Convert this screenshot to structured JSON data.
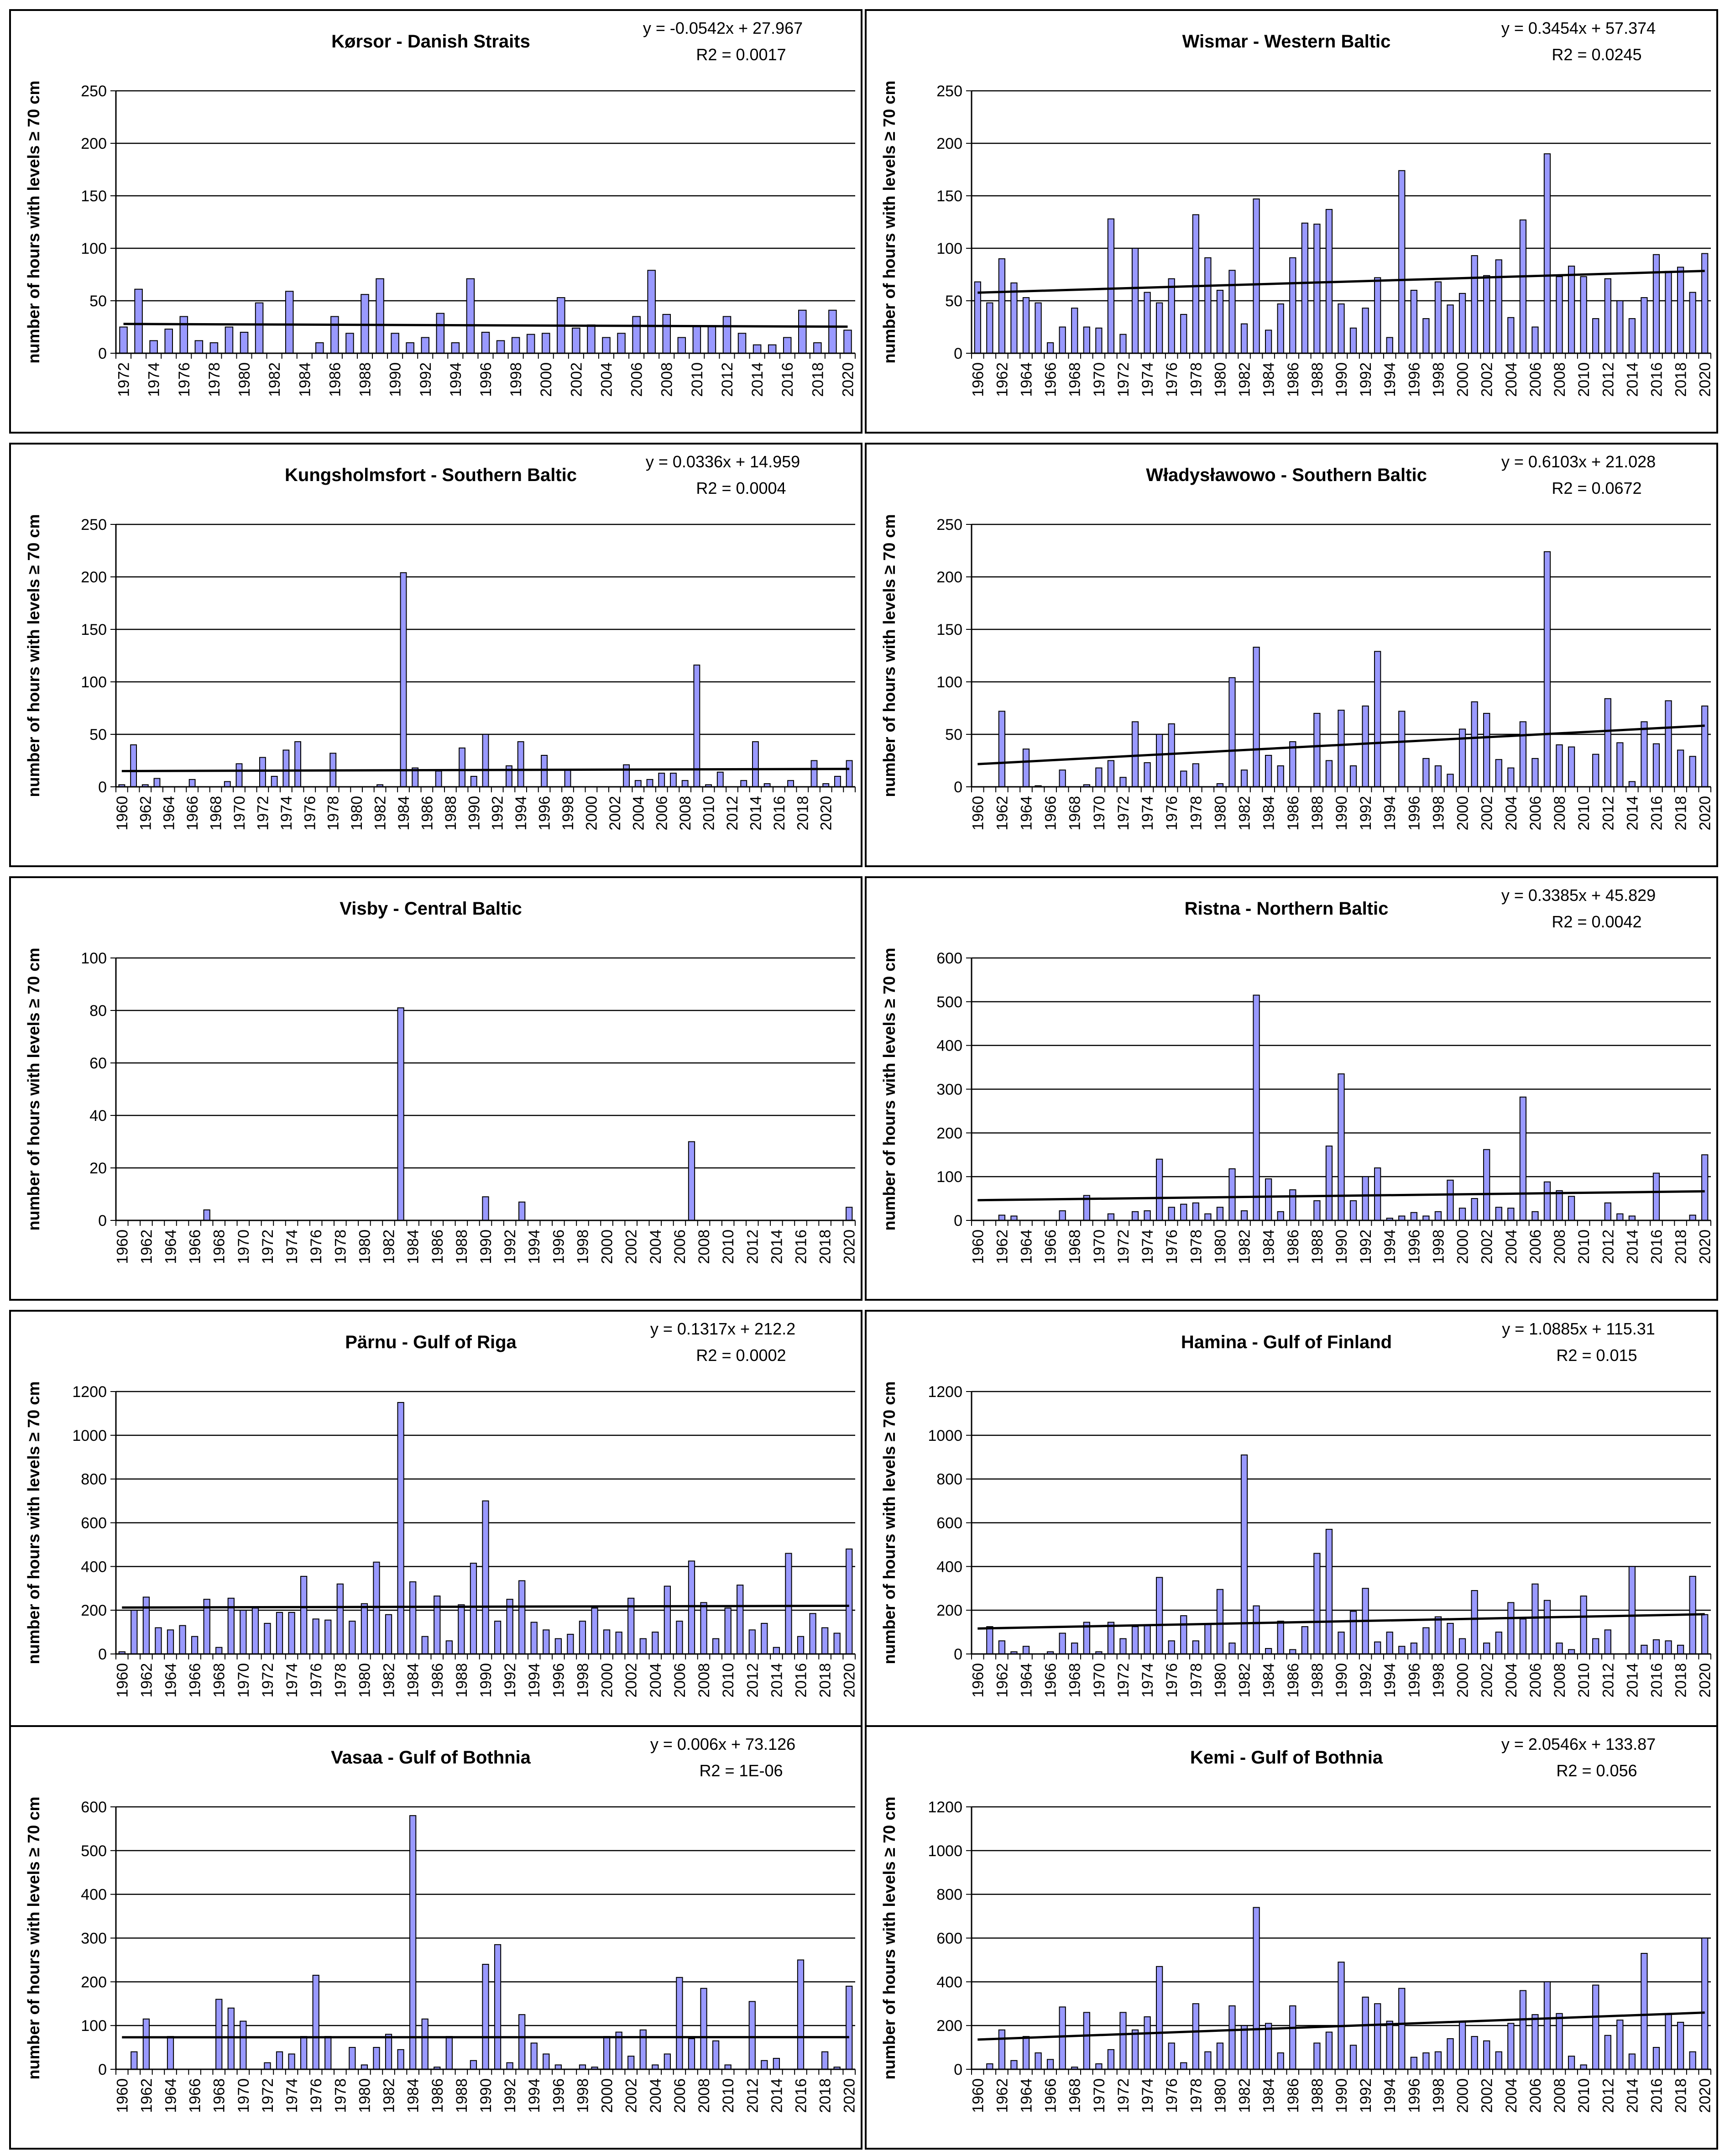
{
  "y_axis_label": "number of hours with levels ≥ 70 cm",
  "colors": {
    "bar_fill": "#9999ff",
    "bar_stroke": "#000000",
    "trend": "#000000",
    "gridline": "#000000"
  },
  "chart_data": [
    {
      "type": "bar",
      "title": "Kørsor - Danish Straits",
      "equation": "y = -0.0542x + 27.967",
      "r2": "R2 = 0.0017",
      "ylabel": "number of hours with levels ≥ 70 cm",
      "ylim": [
        0,
        250
      ],
      "yticks": [
        0,
        50,
        100,
        150,
        200,
        250
      ],
      "trend": {
        "slope": -0.0542,
        "intercept": 27.967
      },
      "x_start": 1972,
      "x_labels": [
        "1972",
        "1974",
        "1976",
        "1978",
        "1980",
        "1982",
        "1984",
        "1986",
        "1988",
        "1990",
        "1992",
        "1994",
        "1996",
        "1998",
        "2000",
        "2002",
        "2004",
        "2006",
        "2008",
        "2010",
        "2012",
        "2014",
        "2016",
        "2018",
        "2020"
      ],
      "values": [
        25,
        61,
        12,
        23,
        35,
        12,
        10,
        25,
        20,
        48,
        0,
        59,
        0,
        10,
        35,
        19,
        56,
        71,
        19,
        10,
        15,
        38,
        10,
        71,
        20,
        12,
        15,
        18,
        19,
        53,
        24,
        27,
        15,
        19,
        35,
        79,
        37,
        15,
        26,
        26,
        35,
        19,
        8,
        8,
        15,
        41,
        10,
        41,
        22
      ]
    },
    {
      "type": "bar",
      "title": "Wismar - Western Baltic",
      "equation": "y = 0.3454x + 57.374",
      "r2": "R2 = 0.0245",
      "ylabel": "number of hours with levels ≥ 70 cm",
      "ylim": [
        0,
        250
      ],
      "yticks": [
        0,
        50,
        100,
        150,
        200,
        250
      ],
      "trend": {
        "slope": 0.3454,
        "intercept": 57.374
      },
      "x_start": 1960,
      "x_labels": [
        "1960",
        "1962",
        "1964",
        "1966",
        "1968",
        "1970",
        "1972",
        "1974",
        "1976",
        "1978",
        "1980",
        "1982",
        "1984",
        "1986",
        "1988",
        "1990",
        "1992",
        "1994",
        "1996",
        "1998",
        "2000",
        "2002",
        "2004",
        "2006",
        "2008",
        "2010",
        "2012",
        "2014",
        "2016",
        "2018",
        "2020"
      ],
      "values": [
        68,
        48,
        90,
        67,
        53,
        48,
        10,
        25,
        43,
        25,
        24,
        128,
        18,
        100,
        58,
        48,
        71,
        37,
        132,
        91,
        60,
        79,
        28,
        147,
        22,
        47,
        91,
        124,
        123,
        137,
        47,
        24,
        43,
        72,
        15,
        174,
        60,
        33,
        68,
        46,
        57,
        93,
        74,
        89,
        34,
        127,
        25,
        190,
        73,
        83,
        73,
        33,
        71,
        50,
        33,
        53,
        94,
        78,
        82,
        58,
        95
      ]
    },
    {
      "type": "bar",
      "title": "Kungsholmsfort - Southern Baltic",
      "equation": "y = 0.0336x + 14.959",
      "r2": "R2 = 0.0004",
      "ylabel": "number of hours with levels ≥ 70 cm",
      "ylim": [
        0,
        250
      ],
      "yticks": [
        0,
        50,
        100,
        150,
        200,
        250
      ],
      "trend": {
        "slope": 0.0336,
        "intercept": 14.959
      },
      "x_start": 1960,
      "x_labels": [
        "1960",
        "1962",
        "1964",
        "1966",
        "1968",
        "1970",
        "1972",
        "1974",
        "1976",
        "1978",
        "1980",
        "1982",
        "1984",
        "1986",
        "1988",
        "1990",
        "1992",
        "1994",
        "1996",
        "1998",
        "2000",
        "2002",
        "2004",
        "2006",
        "2008",
        "2010",
        "2012",
        "2014",
        "2016",
        "2018",
        "2020"
      ],
      "values": [
        2,
        40,
        2,
        8,
        0,
        0,
        7,
        0,
        0,
        5,
        22,
        0,
        28,
        10,
        35,
        43,
        0,
        0,
        32,
        0,
        0,
        0,
        2,
        0,
        204,
        18,
        0,
        15,
        0,
        37,
        10,
        50,
        0,
        20,
        43,
        0,
        30,
        0,
        16,
        0,
        0,
        0,
        0,
        21,
        6,
        7,
        13,
        13,
        6,
        116,
        2,
        14,
        0,
        6,
        43,
        3,
        0,
        6,
        0,
        25,
        3,
        10,
        25
      ]
    },
    {
      "type": "bar",
      "title": "Władysławowo - Southern Baltic",
      "equation": "y = 0.6103x + 21.028",
      "r2": "R2 = 0.0672",
      "ylabel": "number of hours with levels ≥ 70 cm",
      "ylim": [
        0,
        250
      ],
      "yticks": [
        0,
        50,
        100,
        150,
        200,
        250
      ],
      "trend": {
        "slope": 0.6103,
        "intercept": 21.028
      },
      "x_start": 1960,
      "x_labels": [
        "1960",
        "1962",
        "1964",
        "1966",
        "1968",
        "1970",
        "1972",
        "1974",
        "1976",
        "1978",
        "1980",
        "1982",
        "1984",
        "1986",
        "1988",
        "1990",
        "1992",
        "1994",
        "1996",
        "1998",
        "2000",
        "2002",
        "2004",
        "2006",
        "2008",
        "2010",
        "2012",
        "2014",
        "2016",
        "2018",
        "2020"
      ],
      "values": [
        0,
        0,
        72,
        0,
        36,
        1,
        0,
        16,
        0,
        2,
        18,
        25,
        9,
        62,
        23,
        50,
        60,
        15,
        22,
        0,
        3,
        104,
        16,
        133,
        30,
        20,
        43,
        0,
        70,
        25,
        73,
        20,
        77,
        129,
        0,
        72,
        0,
        27,
        20,
        12,
        55,
        81,
        70,
        26,
        18,
        62,
        27,
        224,
        40,
        38,
        0,
        31,
        84,
        42,
        5,
        62,
        41,
        82,
        35,
        29,
        77
      ]
    },
    {
      "type": "bar",
      "title": "Visby - Central Baltic",
      "equation": "",
      "r2": "",
      "ylabel": "number of hours with levels ≥ 70 cm",
      "ylim": [
        0,
        100
      ],
      "yticks": [
        0,
        20,
        40,
        60,
        80,
        100
      ],
      "trend": null,
      "x_start": 1960,
      "x_labels": [
        "1960",
        "1962",
        "1964",
        "1966",
        "1968",
        "1970",
        "1972",
        "1974",
        "1976",
        "1978",
        "1980",
        "1982",
        "1984",
        "1986",
        "1988",
        "1990",
        "1992",
        "1994",
        "1996",
        "1998",
        "2000",
        "2002",
        "2004",
        "2006",
        "2008",
        "2010",
        "2012",
        "2014",
        "2016",
        "2018",
        "2020"
      ],
      "values": [
        0,
        0,
        0,
        0,
        0,
        0,
        0,
        4,
        0,
        0,
        0,
        0,
        0,
        0,
        0,
        0,
        0,
        0,
        0,
        0,
        0,
        0,
        0,
        81,
        0,
        0,
        0,
        0,
        0,
        0,
        9,
        0,
        0,
        7,
        0,
        0,
        0,
        0,
        0,
        0,
        0,
        0,
        0,
        0,
        0,
        0,
        0,
        30,
        0,
        0,
        0,
        0,
        0,
        0,
        0,
        0,
        0,
        0,
        0,
        0,
        5
      ]
    },
    {
      "type": "bar",
      "title": "Ristna - Northern Baltic",
      "equation": "y = 0.3385x + 45.829",
      "r2": "R2 = 0.0042",
      "ylabel": "number of hours with levels ≥ 70 cm",
      "ylim": [
        0,
        600
      ],
      "yticks": [
        0,
        100,
        200,
        300,
        400,
        500,
        600
      ],
      "trend": {
        "slope": 0.3385,
        "intercept": 45.829
      },
      "x_start": 1960,
      "x_labels": [
        "1960",
        "1962",
        "1964",
        "1966",
        "1968",
        "1970",
        "1972",
        "1974",
        "1976",
        "1978",
        "1980",
        "1982",
        "1984",
        "1986",
        "1988",
        "1990",
        "1992",
        "1994",
        "1996",
        "1998",
        "2000",
        "2002",
        "2004",
        "2006",
        "2008",
        "2010",
        "2012",
        "2014",
        "2016",
        "2018",
        "2020"
      ],
      "values": [
        0,
        0,
        12,
        10,
        0,
        0,
        0,
        22,
        0,
        57,
        0,
        15,
        0,
        20,
        22,
        140,
        30,
        37,
        40,
        15,
        30,
        118,
        22,
        515,
        95,
        20,
        70,
        0,
        45,
        170,
        335,
        45,
        100,
        120,
        5,
        10,
        18,
        10,
        20,
        92,
        28,
        50,
        162,
        30,
        28,
        282,
        20,
        88,
        68,
        55,
        0,
        0,
        40,
        15,
        10,
        0,
        108,
        0,
        0,
        12,
        150
      ]
    },
    {
      "type": "bar",
      "title": "Pärnu - Gulf of Riga",
      "equation": "y = 0.1317x + 212.2",
      "r2": "R2 = 0.0002",
      "ylabel": "number of hours with levels ≥ 70 cm",
      "ylim": [
        0,
        1200
      ],
      "yticks": [
        0,
        200,
        400,
        600,
        800,
        1000,
        1200
      ],
      "trend": {
        "slope": 0.1317,
        "intercept": 212.2
      },
      "x_start": 1960,
      "x_labels": [
        "1960",
        "1962",
        "1964",
        "1966",
        "1968",
        "1970",
        "1972",
        "1974",
        "1976",
        "1978",
        "1980",
        "1982",
        "1984",
        "1986",
        "1988",
        "1990",
        "1992",
        "1994",
        "1996",
        "1998",
        "2000",
        "2002",
        "2004",
        "2006",
        "2008",
        "2010",
        "2012",
        "2014",
        "2016",
        "2018",
        "2020"
      ],
      "values": [
        10,
        200,
        260,
        120,
        110,
        130,
        80,
        250,
        30,
        255,
        200,
        210,
        140,
        190,
        190,
        355,
        160,
        155,
        320,
        150,
        230,
        420,
        180,
        1150,
        330,
        80,
        265,
        60,
        225,
        415,
        700,
        150,
        250,
        335,
        145,
        110,
        70,
        90,
        150,
        210,
        110,
        100,
        255,
        70,
        100,
        310,
        150,
        425,
        235,
        70,
        210,
        315,
        110,
        140,
        30,
        460,
        80,
        185,
        120,
        95,
        480
      ]
    },
    {
      "type": "bar",
      "title": "Hamina - Gulf of Finland",
      "equation": "y = 1.0885x + 115.31",
      "r2": "R2 = 0.015",
      "ylabel": "number of hours with levels ≥ 70 cm",
      "ylim": [
        0,
        1200
      ],
      "yticks": [
        0,
        200,
        400,
        600,
        800,
        1000,
        1200
      ],
      "trend": {
        "slope": 1.0885,
        "intercept": 115.31
      },
      "x_start": 1960,
      "x_labels": [
        "1960",
        "1962",
        "1964",
        "1966",
        "1968",
        "1970",
        "1972",
        "1974",
        "1976",
        "1978",
        "1980",
        "1982",
        "1984",
        "1986",
        "1988",
        "1990",
        "1992",
        "1994",
        "1996",
        "1998",
        "2000",
        "2002",
        "2004",
        "2006",
        "2008",
        "2010",
        "2012",
        "2014",
        "2016",
        "2018",
        "2020"
      ],
      "values": [
        0,
        125,
        60,
        10,
        35,
        0,
        10,
        95,
        50,
        145,
        10,
        145,
        70,
        125,
        130,
        350,
        60,
        175,
        60,
        135,
        295,
        50,
        910,
        220,
        25,
        150,
        20,
        125,
        460,
        570,
        100,
        195,
        300,
        55,
        100,
        35,
        50,
        120,
        170,
        140,
        70,
        290,
        50,
        100,
        235,
        160,
        320,
        245,
        50,
        20,
        265,
        70,
        110,
        0,
        400,
        40,
        65,
        60,
        40,
        355,
        180
      ]
    },
    {
      "type": "bar",
      "title": "Vasaa - Gulf of Bothnia",
      "equation": "y = 0.006x + 73.126",
      "r2": "R2 = 1E-06",
      "ylabel": "number of hours with levels ≥ 70 cm",
      "ylim": [
        0,
        600
      ],
      "yticks": [
        0,
        100,
        200,
        300,
        400,
        500,
        600
      ],
      "trend": {
        "slope": 0.006,
        "intercept": 73.126
      },
      "x_start": 1960,
      "x_labels": [
        "1960",
        "1962",
        "1964",
        "1966",
        "1968",
        "1970",
        "1972",
        "1974",
        "1976",
        "1978",
        "1980",
        "1982",
        "1984",
        "1986",
        "1988",
        "1990",
        "1992",
        "1994",
        "1996",
        "1998",
        "2000",
        "2002",
        "2004",
        "2006",
        "2008",
        "2010",
        "2012",
        "2014",
        "2016",
        "2018",
        "2020"
      ],
      "values": [
        0,
        40,
        115,
        0,
        75,
        0,
        0,
        0,
        160,
        140,
        110,
        0,
        15,
        40,
        35,
        75,
        215,
        75,
        0,
        50,
        10,
        50,
        80,
        45,
        580,
        115,
        5,
        75,
        0,
        20,
        240,
        285,
        15,
        125,
        60,
        35,
        10,
        0,
        10,
        5,
        75,
        85,
        30,
        90,
        10,
        35,
        210,
        70,
        185,
        65,
        10,
        0,
        155,
        20,
        25,
        0,
        250,
        0,
        40,
        5,
        190
      ]
    },
    {
      "type": "bar",
      "title": "Kemi - Gulf of Bothnia",
      "equation": "y = 2.0546x + 133.87",
      "r2": "R2 = 0.056",
      "ylabel": "number of hours with levels ≥ 70 cm",
      "ylim": [
        0,
        1200
      ],
      "yticks": [
        0,
        200,
        400,
        600,
        800,
        1000,
        1200
      ],
      "trend": {
        "slope": 2.0546,
        "intercept": 133.87
      },
      "x_start": 1960,
      "x_labels": [
        "1960",
        "1962",
        "1964",
        "1966",
        "1968",
        "1970",
        "1972",
        "1974",
        "1976",
        "1978",
        "1980",
        "1982",
        "1984",
        "1986",
        "1988",
        "1990",
        "1992",
        "1994",
        "1996",
        "1998",
        "2000",
        "2002",
        "2004",
        "2006",
        "2008",
        "2010",
        "2012",
        "2014",
        "2016",
        "2018",
        "2020"
      ],
      "values": [
        0,
        25,
        180,
        40,
        150,
        75,
        45,
        285,
        10,
        260,
        25,
        90,
        260,
        180,
        240,
        470,
        120,
        30,
        300,
        80,
        120,
        290,
        200,
        740,
        210,
        75,
        290,
        0,
        120,
        170,
        490,
        110,
        330,
        300,
        220,
        370,
        55,
        75,
        80,
        140,
        220,
        150,
        130,
        80,
        210,
        360,
        250,
        400,
        255,
        60,
        20,
        385,
        155,
        225,
        70,
        530,
        100,
        250,
        215,
        80,
        600
      ]
    }
  ]
}
